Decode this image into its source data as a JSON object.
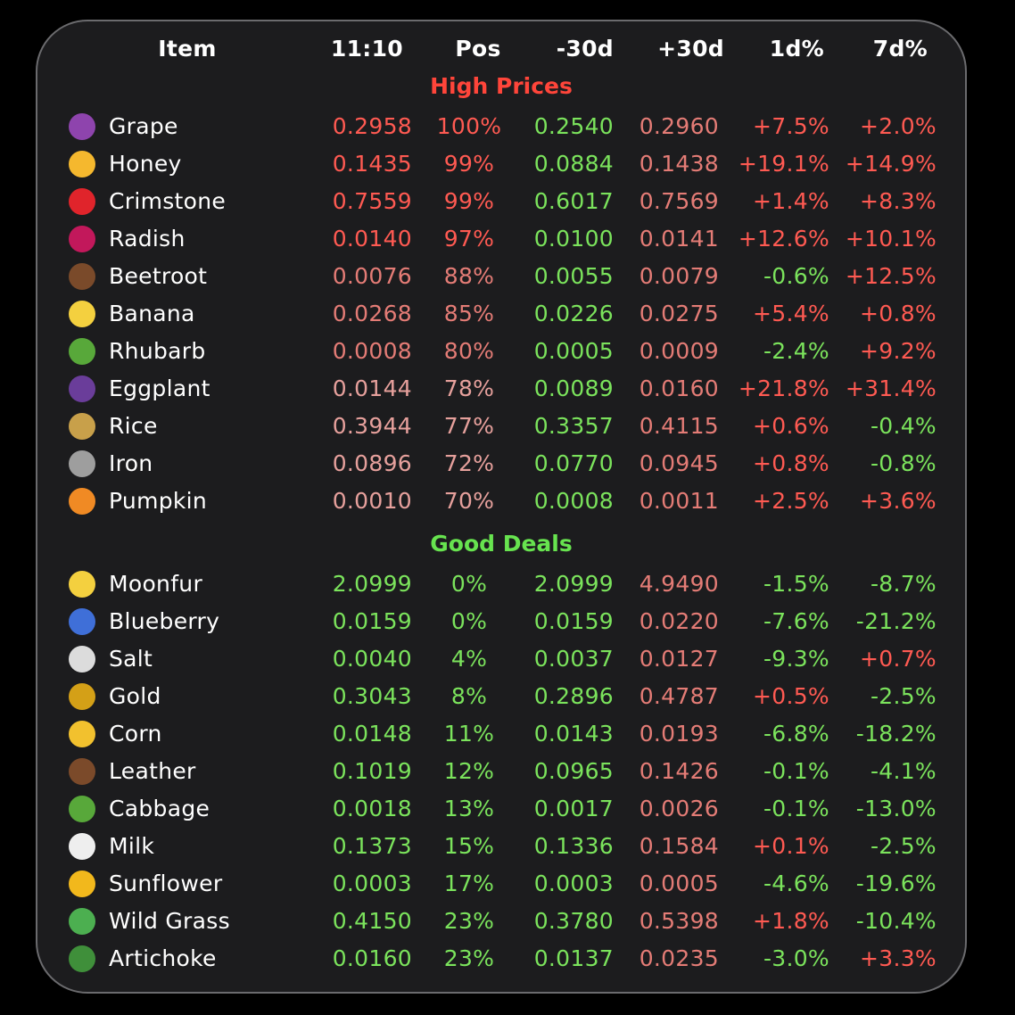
{
  "headers": {
    "item": "Item",
    "time": "11:10",
    "pos": "Pos",
    "minus30": "-30d",
    "plus30": "+30d",
    "d1": "1d%",
    "d7": "7d%"
  },
  "sections": {
    "high": {
      "title": "High Prices",
      "color": "#ff453a"
    },
    "good": {
      "title": "Good Deals",
      "color": "#67e34f"
    }
  },
  "colors": {
    "red": "#ff5a52",
    "green": "#7be35c",
    "red_soft": "#e47c76",
    "white": "#ffffff"
  },
  "high_rows": [
    {
      "icon": "grape-icon",
      "glyph": "🍇",
      "swatch": "#8e44ad",
      "name": "Grape",
      "price": "0.2958",
      "pos": "100%",
      "minus30": "0.2540",
      "plus30": "0.2960",
      "d1": "+7.5%",
      "d7": "+2.0%",
      "pcol": "#ff5a52",
      "poscol": "#ff5a52",
      "d1col": "#ff5a52",
      "d7col": "#ff5a52"
    },
    {
      "icon": "honey-icon",
      "glyph": "🍯",
      "swatch": "#f5b82e",
      "name": "Honey",
      "price": "0.1435",
      "pos": "99%",
      "minus30": "0.0884",
      "plus30": "0.1438",
      "d1": "+19.1%",
      "d7": "+14.9%",
      "pcol": "#ff5a52",
      "poscol": "#ff5a52",
      "d1col": "#ff5a52",
      "d7col": "#ff5a52"
    },
    {
      "icon": "crimstone-icon",
      "glyph": "♦",
      "swatch": "#e0242b",
      "name": "Crimstone",
      "price": "0.7559",
      "pos": "99%",
      "minus30": "0.6017",
      "plus30": "0.7569",
      "d1": "+1.4%",
      "d7": "+8.3%",
      "pcol": "#ff5a52",
      "poscol": "#ff5a52",
      "d1col": "#ff5a52",
      "d7col": "#ff5a52"
    },
    {
      "icon": "radish-icon",
      "glyph": "🥕",
      "swatch": "#c2185b",
      "name": "Radish",
      "price": "0.0140",
      "pos": "97%",
      "minus30": "0.0100",
      "plus30": "0.0141",
      "d1": "+12.6%",
      "d7": "+10.1%",
      "pcol": "#ff5a52",
      "poscol": "#ff5a52",
      "d1col": "#ff5a52",
      "d7col": "#ff5a52"
    },
    {
      "icon": "beetroot-icon",
      "glyph": "●",
      "swatch": "#7a4a2a",
      "name": "Beetroot",
      "price": "0.0076",
      "pos": "88%",
      "minus30": "0.0055",
      "plus30": "0.0079",
      "d1": "-0.6%",
      "d7": "+12.5%",
      "pcol": "#e47c76",
      "poscol": "#e47c76",
      "d1col": "#7be35c",
      "d7col": "#ff5a52"
    },
    {
      "icon": "banana-icon",
      "glyph": "🍌",
      "swatch": "#f4d03f",
      "name": "Banana",
      "price": "0.0268",
      "pos": "85%",
      "minus30": "0.0226",
      "plus30": "0.0275",
      "d1": "+5.4%",
      "d7": "+0.8%",
      "pcol": "#e47c76",
      "poscol": "#e47c76",
      "d1col": "#ff5a52",
      "d7col": "#ff5a52"
    },
    {
      "icon": "rhubarb-icon",
      "glyph": "🥬",
      "swatch": "#58a83a",
      "name": "Rhubarb",
      "price": "0.0008",
      "pos": "80%",
      "minus30": "0.0005",
      "plus30": "0.0009",
      "d1": "-2.4%",
      "d7": "+9.2%",
      "pcol": "#e47c76",
      "poscol": "#e47c76",
      "d1col": "#7be35c",
      "d7col": "#ff5a52"
    },
    {
      "icon": "eggplant-icon",
      "glyph": "🍆",
      "swatch": "#6a3d9a",
      "name": "Eggplant",
      "price": "0.0144",
      "pos": "78%",
      "minus30": "0.0089",
      "plus30": "0.0160",
      "d1": "+21.8%",
      "d7": "+31.4%",
      "pcol": "#e6a09c",
      "poscol": "#e6a09c",
      "d1col": "#ff5a52",
      "d7col": "#ff5a52"
    },
    {
      "icon": "rice-icon",
      "glyph": "🌾",
      "swatch": "#c8a04a",
      "name": "Rice",
      "price": "0.3944",
      "pos": "77%",
      "minus30": "0.3357",
      "plus30": "0.4115",
      "d1": "+0.6%",
      "d7": "-0.4%",
      "pcol": "#e6a09c",
      "poscol": "#e6a09c",
      "d1col": "#ff5a52",
      "d7col": "#7be35c"
    },
    {
      "icon": "iron-icon",
      "glyph": "⚒",
      "swatch": "#9e9e9e",
      "name": "Iron",
      "price": "0.0896",
      "pos": "72%",
      "minus30": "0.0770",
      "plus30": "0.0945",
      "d1": "+0.8%",
      "d7": "-0.8%",
      "pcol": "#e6a09c",
      "poscol": "#e6a09c",
      "d1col": "#ff5a52",
      "d7col": "#7be35c"
    },
    {
      "icon": "pumpkin-icon",
      "glyph": "🎃",
      "swatch": "#f08a24",
      "name": "Pumpkin",
      "price": "0.0010",
      "pos": "70%",
      "minus30": "0.0008",
      "plus30": "0.0011",
      "d1": "+2.5%",
      "d7": "+3.6%",
      "pcol": "#e6a09c",
      "poscol": "#e6a09c",
      "d1col": "#ff5a52",
      "d7col": "#ff5a52"
    }
  ],
  "good_rows": [
    {
      "icon": "moon-icon",
      "glyph": "☾",
      "swatch": "#f4d03f",
      "name": "Moonfur",
      "price": "2.0999",
      "pos": "0%",
      "minus30": "2.0999",
      "plus30": "4.9490",
      "d1": "-1.5%",
      "d7": "-8.7%",
      "d1col": "#7be35c",
      "d7col": "#7be35c"
    },
    {
      "icon": "blueberry-icon",
      "glyph": "●",
      "swatch": "#3f6fd8",
      "name": "Blueberry",
      "price": "0.0159",
      "pos": "0%",
      "minus30": "0.0159",
      "plus30": "0.0220",
      "d1": "-7.6%",
      "d7": "-21.2%",
      "d1col": "#7be35c",
      "d7col": "#7be35c"
    },
    {
      "icon": "salt-icon",
      "glyph": "🧂",
      "swatch": "#dcdcdc",
      "name": "Salt",
      "price": "0.0040",
      "pos": "4%",
      "minus30": "0.0037",
      "plus30": "0.0127",
      "d1": "-9.3%",
      "d7": "+0.7%",
      "d1col": "#7be35c",
      "d7col": "#ff5a52"
    },
    {
      "icon": "gold-icon",
      "glyph": "⚜",
      "swatch": "#d4a017",
      "name": "Gold",
      "price": "0.3043",
      "pos": "8%",
      "minus30": "0.2896",
      "plus30": "0.4787",
      "d1": "+0.5%",
      "d7": "-2.5%",
      "d1col": "#ff5a52",
      "d7col": "#7be35c"
    },
    {
      "icon": "corn-icon",
      "glyph": "🌽",
      "swatch": "#f2c12e",
      "name": "Corn",
      "price": "0.0148",
      "pos": "11%",
      "minus30": "0.0143",
      "plus30": "0.0193",
      "d1": "-6.8%",
      "d7": "-18.2%",
      "d1col": "#7be35c",
      "d7col": "#7be35c"
    },
    {
      "icon": "leather-icon",
      "glyph": "▣",
      "swatch": "#7b4a2a",
      "name": "Leather",
      "price": "0.1019",
      "pos": "12%",
      "minus30": "0.0965",
      "plus30": "0.1426",
      "d1": "-0.1%",
      "d7": "-4.1%",
      "d1col": "#7be35c",
      "d7col": "#7be35c"
    },
    {
      "icon": "cabbage-icon",
      "glyph": "🥬",
      "swatch": "#58a83a",
      "name": "Cabbage",
      "price": "0.0018",
      "pos": "13%",
      "minus30": "0.0017",
      "plus30": "0.0026",
      "d1": "-0.1%",
      "d7": "-13.0%",
      "d1col": "#7be35c",
      "d7col": "#7be35c"
    },
    {
      "icon": "milk-icon",
      "glyph": "🥛",
      "swatch": "#eeeeee",
      "name": "Milk",
      "price": "0.1373",
      "pos": "15%",
      "minus30": "0.1336",
      "plus30": "0.1584",
      "d1": "+0.1%",
      "d7": "-2.5%",
      "d1col": "#ff5a52",
      "d7col": "#7be35c"
    },
    {
      "icon": "sunflower-icon",
      "glyph": "🌻",
      "swatch": "#f2b81c",
      "name": "Sunflower",
      "price": "0.0003",
      "pos": "17%",
      "minus30": "0.0003",
      "plus30": "0.0005",
      "d1": "-4.6%",
      "d7": "-19.6%",
      "d1col": "#7be35c",
      "d7col": "#7be35c"
    },
    {
      "icon": "sprout-icon",
      "glyph": "🌱",
      "swatch": "#4caf50",
      "name": "Wild Grass",
      "price": "0.4150",
      "pos": "23%",
      "minus30": "0.3780",
      "plus30": "0.5398",
      "d1": "+1.8%",
      "d7": "-10.4%",
      "d1col": "#ff5a52",
      "d7col": "#7be35c"
    },
    {
      "icon": "broccoli-icon",
      "glyph": "🥦",
      "swatch": "#3f8f3a",
      "name": "Artichoke",
      "price": "0.0160",
      "pos": "23%",
      "minus30": "0.0137",
      "plus30": "0.0235",
      "d1": "-3.0%",
      "d7": "+3.3%",
      "d1col": "#7be35c",
      "d7col": "#ff5a52"
    }
  ]
}
